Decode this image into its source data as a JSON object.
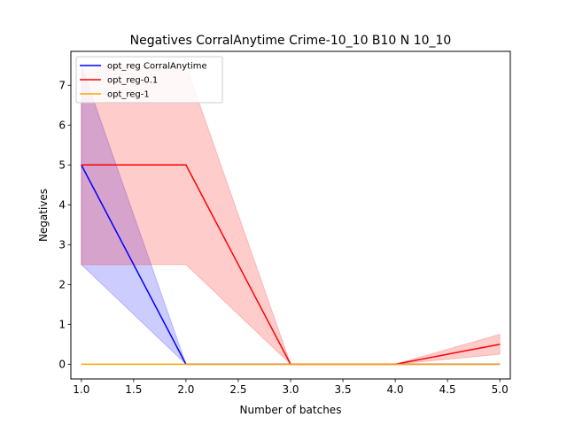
{
  "chart_data": {
    "type": "line",
    "title": "Negatives CorralAnytime Crime-10_10 B10 N 10_10",
    "xlabel": "Number of batches",
    "ylabel": "Negatives",
    "x": [
      1.0,
      2.0,
      3.0,
      4.0,
      5.0
    ],
    "xlim": [
      0.9,
      5.1
    ],
    "ylim": [
      -0.37,
      7.85
    ],
    "xticks": [
      "1.0",
      "1.5",
      "2.0",
      "2.5",
      "3.0",
      "3.5",
      "4.0",
      "4.5",
      "5.0"
    ],
    "yticks": [
      "0",
      "1",
      "2",
      "3",
      "4",
      "5",
      "6",
      "7"
    ],
    "grid": false,
    "legend_position": "top-left",
    "series": [
      {
        "name": "opt_reg CorralAnytime",
        "color": "#0000ff",
        "values": [
          5,
          0,
          0,
          0,
          0
        ],
        "band_low": [
          2.5,
          0,
          0,
          0,
          0
        ],
        "band_high": [
          7.5,
          0,
          0,
          0,
          0
        ]
      },
      {
        "name": "opt_reg-0.1",
        "color": "#ff0000",
        "values": [
          5,
          5,
          0,
          0,
          0.5
        ],
        "band_low": [
          2.5,
          2.5,
          0,
          0,
          0.25
        ],
        "band_high": [
          7.5,
          7.5,
          0,
          0,
          0.75
        ]
      },
      {
        "name": "opt_reg-1",
        "color": "#ffa500",
        "values": [
          0,
          0,
          0,
          0,
          0
        ],
        "band_low": [
          0,
          0,
          0,
          0,
          0
        ],
        "band_high": [
          0,
          0,
          0,
          0,
          0
        ]
      }
    ]
  }
}
